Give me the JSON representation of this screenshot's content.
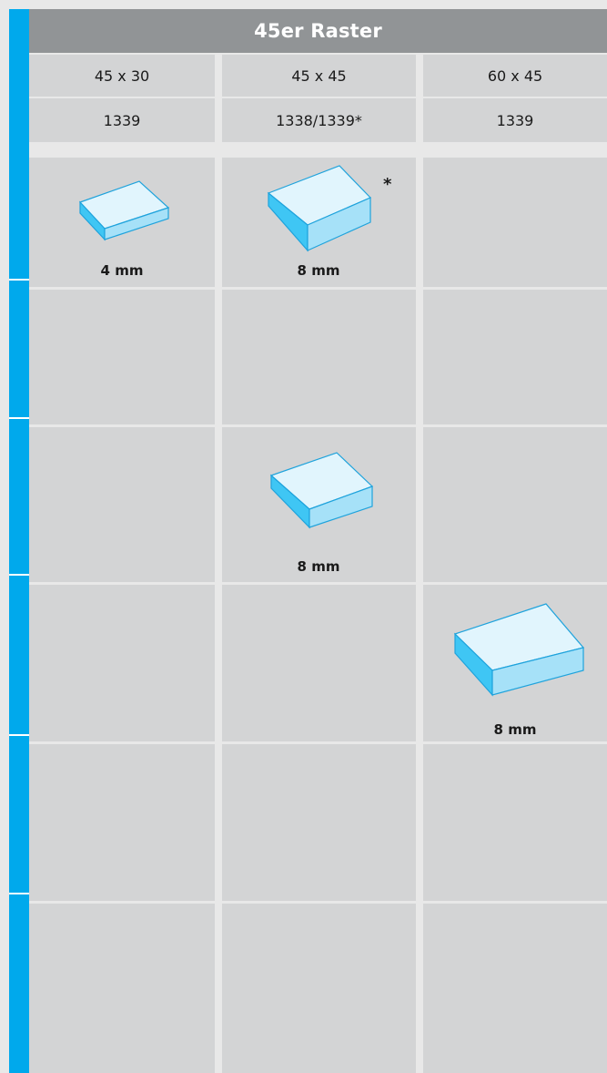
{
  "table": {
    "title": "45er Raster",
    "columns": [
      {
        "size": "45 x 30",
        "code": "1339"
      },
      {
        "size": "45 x 45",
        "code": "1338/1339*"
      },
      {
        "size": "60 x 45",
        "code": "1339"
      }
    ],
    "items": [
      {
        "row": 1,
        "column": 1,
        "label": "4 mm"
      },
      {
        "row": 1,
        "column": 2,
        "label": "8 mm",
        "marker": "*"
      },
      {
        "row": 3,
        "column": 2,
        "label": "8 mm"
      },
      {
        "row": 4,
        "column": 3,
        "label": "8 mm"
      }
    ]
  },
  "colors": {
    "accent_bar": "#00a9ec",
    "header_bg": "#919496",
    "cell_bg": "#d3d4d5",
    "block_top": "#e1f5fd",
    "block_front": "#a6e1f8",
    "block_side": "#3fc6f4",
    "block_edge": "#1fa3dc"
  }
}
